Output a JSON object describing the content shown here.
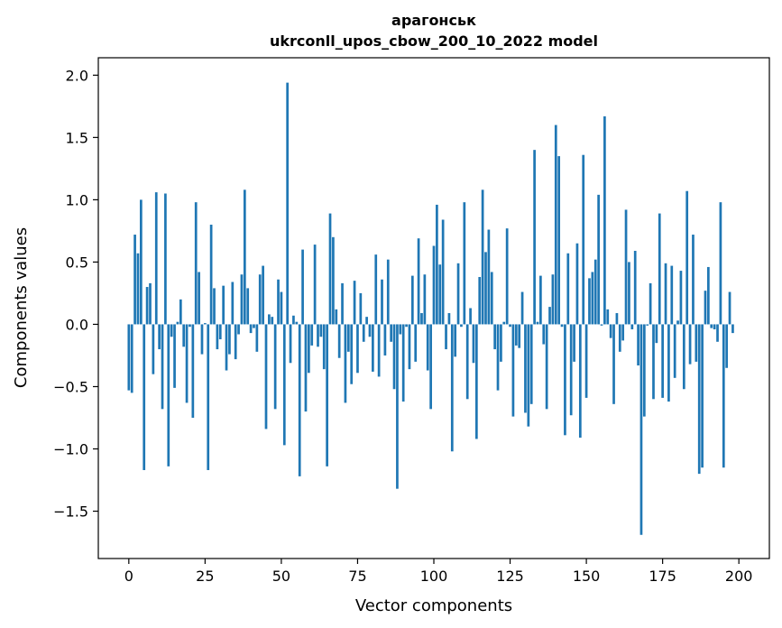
{
  "colors": {
    "bar": "#1f77b4",
    "axis": "#000000",
    "background": "#ffffff"
  },
  "chart_data": {
    "type": "bar",
    "title_line1": "арагонськ",
    "title_line2": "ukrconll_upos_cbow_200_10_2022 model",
    "xlabel": "Vector components",
    "ylabel": "Components values",
    "xlim": [
      -10,
      210
    ],
    "ylim": [
      -1.88,
      2.14
    ],
    "grid": false,
    "legend": "none",
    "x_ticks": [
      0,
      25,
      50,
      75,
      100,
      125,
      150,
      175,
      200
    ],
    "x_tick_labels": [
      "0",
      "25",
      "50",
      "75",
      "100",
      "125",
      "150",
      "175",
      "200"
    ],
    "y_ticks": [
      -1.5,
      -1.0,
      -0.5,
      0.0,
      0.5,
      1.0,
      1.5,
      2.0
    ],
    "y_tick_labels": [
      "−1.5",
      "−1.0",
      "−0.5",
      "0.0",
      "0.5",
      "1.0",
      "1.5",
      "2.0"
    ],
    "series": [
      {
        "values": [
          -0.53,
          -0.55,
          0.72,
          0.57,
          1.0,
          -1.17,
          0.3,
          0.33,
          -0.4,
          1.06,
          -0.2,
          -0.68,
          1.05,
          -1.14,
          -0.1,
          -0.51,
          0.02,
          0.2,
          -0.18,
          -0.63,
          -0.02,
          -0.75,
          0.98,
          0.42,
          -0.24,
          0.01,
          -1.17,
          0.8,
          0.29,
          -0.2,
          -0.12,
          0.31,
          -0.37,
          -0.24,
          0.34,
          -0.28,
          -0.08,
          0.4,
          1.08,
          0.29,
          -0.07,
          -0.03,
          -0.22,
          0.4,
          0.47,
          -0.84,
          0.08,
          0.06,
          -0.68,
          0.36,
          0.26,
          -0.97,
          1.94,
          -0.31,
          0.07,
          0.02,
          -1.22,
          0.6,
          -0.7,
          -0.39,
          -0.17,
          0.64,
          -0.18,
          -0.1,
          -0.36,
          -1.14,
          0.89,
          0.7,
          0.12,
          -0.27,
          0.33,
          -0.63,
          -0.22,
          -0.48,
          0.35,
          -0.39,
          0.25,
          -0.14,
          0.06,
          -0.1,
          -0.38,
          0.56,
          -0.42,
          0.36,
          -0.25,
          0.52,
          -0.14,
          -0.52,
          -1.32,
          -0.08,
          -0.62,
          -0.02,
          -0.36,
          0.39,
          -0.3,
          0.69,
          0.09,
          0.4,
          -0.37,
          -0.68,
          0.63,
          0.96,
          0.48,
          0.84,
          -0.2,
          0.09,
          -1.02,
          -0.26,
          0.49,
          -0.02,
          0.98,
          -0.6,
          0.13,
          -0.31,
          -0.92,
          0.38,
          1.08,
          0.58,
          0.76,
          0.42,
          -0.2,
          -0.53,
          -0.3,
          0.02,
          0.77,
          -0.02,
          -0.74,
          -0.17,
          -0.19,
          0.26,
          -0.71,
          -0.82,
          -0.64,
          1.4,
          0.02,
          0.39,
          -0.16,
          -0.68,
          0.14,
          0.4,
          1.6,
          1.35,
          -0.02,
          -0.89,
          0.57,
          -0.73,
          -0.3,
          0.65,
          -0.91,
          1.36,
          -0.59,
          0.37,
          0.42,
          0.52,
          1.04,
          -0.01,
          1.67,
          0.12,
          -0.11,
          -0.64,
          0.09,
          -0.22,
          -0.13,
          0.92,
          0.5,
          -0.04,
          0.59,
          -0.33,
          -1.69,
          -0.74,
          -0.01,
          0.33,
          -0.6,
          -0.15,
          0.89,
          -0.59,
          0.49,
          -0.62,
          0.47,
          -0.43,
          0.03,
          0.43,
          -0.52,
          1.07,
          -0.32,
          0.72,
          -0.3,
          -1.2,
          -1.15,
          0.27,
          0.46,
          -0.03,
          -0.04,
          -0.14,
          0.98,
          -1.15,
          -0.35,
          0.26,
          -0.07
        ]
      }
    ]
  }
}
